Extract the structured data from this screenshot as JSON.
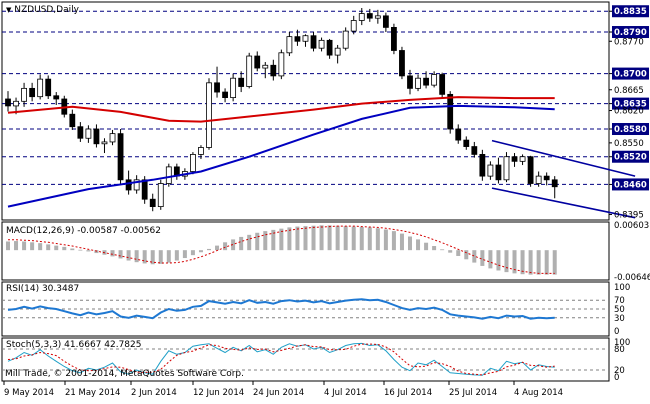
{
  "chart_data": {
    "type": "candlestick",
    "symbol_label": "NZDUSD,Daily",
    "copyright": "Mill Trade, © 2001-2014, MetaQuotes Software Corp.",
    "price_axis": {
      "ylim": [
        0.8383,
        0.8855
      ],
      "levels": [
        {
          "value": 0.8835,
          "label": "0.8835",
          "highlight": true
        },
        {
          "value": 0.879,
          "label": "0.8790",
          "highlight": true
        },
        {
          "value": 0.877,
          "label": "0.8770",
          "highlight": false
        },
        {
          "value": 0.87,
          "label": "0.8700",
          "highlight": true
        },
        {
          "value": 0.8665,
          "label": "0.8665",
          "highlight": false
        },
        {
          "value": 0.8635,
          "label": "0.8635",
          "highlight": true
        },
        {
          "value": 0.862,
          "label": "0.8620",
          "highlight": false
        },
        {
          "value": 0.858,
          "label": "0.8580",
          "highlight": true
        },
        {
          "value": 0.855,
          "label": "0.8550",
          "highlight": false
        },
        {
          "value": 0.852,
          "label": "0.8520",
          "highlight": true
        },
        {
          "value": 0.846,
          "label": "0.8460",
          "highlight": true
        },
        {
          "value": 0.8395,
          "label": "0.8395",
          "highlight": false
        }
      ],
      "dashed_levels": [
        0.8835,
        0.879,
        0.87,
        0.8635,
        0.858,
        0.852,
        0.846
      ]
    },
    "x_labels": [
      "9 May 2014",
      "21 May 2014",
      "2 Jun 2014",
      "12 Jun 2014",
      "24 Jun 2014",
      "4 Jul 2014",
      "16 Jul 2014",
      "25 Jul 2014",
      "4 Aug 2014"
    ],
    "candles": [
      [
        0.8645,
        0.8662,
        0.8618,
        0.863
      ],
      [
        0.863,
        0.8648,
        0.8612,
        0.864
      ],
      [
        0.864,
        0.868,
        0.8628,
        0.8668
      ],
      [
        0.8668,
        0.868,
        0.864,
        0.865
      ],
      [
        0.865,
        0.8698,
        0.8644,
        0.8688
      ],
      [
        0.8688,
        0.8696,
        0.8645,
        0.8652
      ],
      [
        0.8652,
        0.866,
        0.8632,
        0.8645
      ],
      [
        0.8645,
        0.8652,
        0.8605,
        0.8612
      ],
      [
        0.8612,
        0.8622,
        0.8578,
        0.8585
      ],
      [
        0.8585,
        0.8595,
        0.8552,
        0.856
      ],
      [
        0.856,
        0.8588,
        0.855,
        0.858
      ],
      [
        0.858,
        0.859,
        0.854,
        0.8548
      ],
      [
        0.8548,
        0.856,
        0.8528,
        0.8552
      ],
      [
        0.8552,
        0.8578,
        0.8545,
        0.857
      ],
      [
        0.857,
        0.858,
        0.8462,
        0.847
      ],
      [
        0.847,
        0.849,
        0.8438,
        0.8448
      ],
      [
        0.8448,
        0.848,
        0.844,
        0.847
      ],
      [
        0.847,
        0.8478,
        0.8418,
        0.8428
      ],
      [
        0.8428,
        0.844,
        0.8402,
        0.8412
      ],
      [
        0.8412,
        0.847,
        0.8405,
        0.8462
      ],
      [
        0.8462,
        0.8505,
        0.8455,
        0.8498
      ],
      [
        0.8498,
        0.8505,
        0.847,
        0.8478
      ],
      [
        0.8478,
        0.8495,
        0.847,
        0.8488
      ],
      [
        0.8488,
        0.853,
        0.8482,
        0.8525
      ],
      [
        0.8525,
        0.8545,
        0.8515,
        0.854
      ],
      [
        0.854,
        0.869,
        0.8535,
        0.868
      ],
      [
        0.868,
        0.8715,
        0.8648,
        0.866
      ],
      [
        0.866,
        0.8668,
        0.8638,
        0.8648
      ],
      [
        0.8648,
        0.87,
        0.864,
        0.869
      ],
      [
        0.869,
        0.8705,
        0.866,
        0.8672
      ],
      [
        0.8672,
        0.8745,
        0.8668,
        0.8738
      ],
      [
        0.8738,
        0.8748,
        0.8705,
        0.8712
      ],
      [
        0.8712,
        0.8725,
        0.869,
        0.8718
      ],
      [
        0.8718,
        0.873,
        0.8685,
        0.8695
      ],
      [
        0.8695,
        0.8752,
        0.8688,
        0.8745
      ],
      [
        0.8745,
        0.879,
        0.8738,
        0.878
      ],
      [
        0.878,
        0.8795,
        0.876,
        0.877
      ],
      [
        0.877,
        0.8785,
        0.8758,
        0.8782
      ],
      [
        0.8782,
        0.879,
        0.8748,
        0.8755
      ],
      [
        0.8755,
        0.8778,
        0.8748,
        0.8772
      ],
      [
        0.8772,
        0.8775,
        0.8732,
        0.874
      ],
      [
        0.874,
        0.8762,
        0.8722,
        0.8755
      ],
      [
        0.8755,
        0.88,
        0.875,
        0.8792
      ],
      [
        0.8792,
        0.8825,
        0.8785,
        0.8815
      ],
      [
        0.8815,
        0.8842,
        0.8805,
        0.883
      ],
      [
        0.883,
        0.884,
        0.8812,
        0.882
      ],
      [
        0.882,
        0.8838,
        0.8808,
        0.8825
      ],
      [
        0.8825,
        0.8832,
        0.879,
        0.88
      ],
      [
        0.88,
        0.8808,
        0.8742,
        0.875
      ],
      [
        0.875,
        0.8758,
        0.8688,
        0.8695
      ],
      [
        0.8695,
        0.8708,
        0.8655,
        0.8668
      ],
      [
        0.8668,
        0.8698,
        0.8662,
        0.869
      ],
      [
        0.869,
        0.8705,
        0.8668,
        0.8675
      ],
      [
        0.8675,
        0.8705,
        0.867,
        0.8698
      ],
      [
        0.8698,
        0.8702,
        0.8648,
        0.8655
      ],
      [
        0.8655,
        0.8662,
        0.857,
        0.858
      ],
      [
        0.858,
        0.859,
        0.8548,
        0.8556
      ],
      [
        0.8556,
        0.8564,
        0.8535,
        0.8542
      ],
      [
        0.8542,
        0.8552,
        0.8518,
        0.8525
      ],
      [
        0.8525,
        0.8535,
        0.8468,
        0.8478
      ],
      [
        0.8478,
        0.851,
        0.847,
        0.8502
      ],
      [
        0.8502,
        0.8518,
        0.8462,
        0.847
      ],
      [
        0.847,
        0.853,
        0.8465,
        0.852
      ],
      [
        0.852,
        0.8528,
        0.8498,
        0.851
      ],
      [
        0.851,
        0.8525,
        0.8502,
        0.852
      ],
      [
        0.852,
        0.8522,
        0.8455,
        0.8462
      ],
      [
        0.8462,
        0.8488,
        0.8455,
        0.8478
      ],
      [
        0.8478,
        0.8486,
        0.8458,
        0.847
      ],
      [
        0.847,
        0.8478,
        0.843,
        0.8455
      ]
    ],
    "ma_red": [
      [
        0,
        0.8615
      ],
      [
        8,
        0.8628
      ],
      [
        14,
        0.8617
      ],
      [
        20,
        0.8598
      ],
      [
        24,
        0.8596
      ],
      [
        30,
        0.8607
      ],
      [
        38,
        0.8622
      ],
      [
        44,
        0.8635
      ],
      [
        50,
        0.8643
      ],
      [
        56,
        0.8649
      ],
      [
        63,
        0.8647
      ],
      [
        68,
        0.8647
      ]
    ],
    "ma_blue": [
      [
        0,
        0.8412
      ],
      [
        10,
        0.845
      ],
      [
        18,
        0.847
      ],
      [
        24,
        0.8488
      ],
      [
        30,
        0.852
      ],
      [
        38,
        0.8568
      ],
      [
        44,
        0.8602
      ],
      [
        50,
        0.8626
      ],
      [
        56,
        0.863
      ],
      [
        63,
        0.8627
      ],
      [
        68,
        0.8623
      ]
    ],
    "channel_upper": [
      [
        60.2,
        0.8555
      ],
      [
        78,
        0.8478
      ]
    ],
    "channel_lower": [
      [
        60.2,
        0.8452
      ],
      [
        78,
        0.8388
      ]
    ],
    "macd": {
      "label": "MACD(12,26,9) -0.00587 -0.00562",
      "ylim": [
        -0.0072,
        0.0068
      ],
      "ticks": [
        {
          "value": 0.00603,
          "label": "0.00603"
        },
        {
          "value": -0.00646,
          "label": "-0.00646"
        }
      ],
      "histogram": [
        0.0021,
        0.0022,
        0.0021,
        0.0019,
        0.0017,
        0.0014,
        0.0011,
        0.0008,
        0.0004,
        0.0001,
        -0.0003,
        -0.0007,
        -0.0011,
        -0.0015,
        -0.002,
        -0.0025,
        -0.0029,
        -0.0032,
        -0.0034,
        -0.0033,
        -0.003,
        -0.0025,
        -0.0019,
        -0.0012,
        -0.0005,
        0.0003,
        0.0011,
        0.0019,
        0.0026,
        0.0032,
        0.0037,
        0.0042,
        0.0046,
        0.0049,
        0.0052,
        0.0055,
        0.0057,
        0.0058,
        0.0059,
        0.006,
        0.006,
        0.0059,
        0.0058,
        0.0057,
        0.0056,
        0.0055,
        0.0053,
        0.005,
        0.0046,
        0.004,
        0.0033,
        0.0026,
        0.0018,
        0.001,
        0.0002,
        -0.0006,
        -0.0014,
        -0.0022,
        -0.003,
        -0.0038,
        -0.0044,
        -0.0049,
        -0.0053,
        -0.0056,
        -0.0058,
        -0.0059,
        -0.0059,
        -0.0059,
        -0.0059
      ],
      "signal": [
        0.0025,
        0.0025,
        0.0024,
        0.0023,
        0.0021,
        0.0019,
        0.0016,
        0.0013,
        0.001,
        0.0006,
        0.0002,
        -0.0002,
        -0.0006,
        -0.001,
        -0.0014,
        -0.0018,
        -0.0022,
        -0.0026,
        -0.0029,
        -0.0031,
        -0.0031,
        -0.003,
        -0.0027,
        -0.0022,
        -0.0016,
        -0.0009,
        -0.0001,
        0.0007,
        0.0014,
        0.0021,
        0.0027,
        0.0032,
        0.0037,
        0.0041,
        0.0045,
        0.0048,
        0.0051,
        0.0053,
        0.0055,
        0.0056,
        0.0057,
        0.0058,
        0.0058,
        0.0058,
        0.0057,
        0.0056,
        0.0055,
        0.0053,
        0.005,
        0.0047,
        0.0043,
        0.0038,
        0.0032,
        0.0025,
        0.0018,
        0.001,
        0.0002,
        -0.0006,
        -0.0014,
        -0.0022,
        -0.0029,
        -0.0036,
        -0.0042,
        -0.0047,
        -0.0051,
        -0.0054,
        -0.0056,
        -0.0056,
        -0.0056
      ]
    },
    "rsi": {
      "label": "RSI(14) 30.3487",
      "ylim": [
        0,
        100
      ],
      "ticks": [
        {
          "value": 100,
          "label": "100"
        },
        {
          "value": 70,
          "label": "70"
        },
        {
          "value": 50,
          "label": "50"
        },
        {
          "value": 30,
          "label": "30"
        },
        {
          "value": 0,
          "label": "0"
        }
      ],
      "dashed_levels": [
        70,
        50,
        30
      ],
      "values": [
        48,
        50,
        55,
        51,
        56,
        52,
        50,
        45,
        40,
        36,
        42,
        38,
        41,
        45,
        33,
        30,
        35,
        32,
        29,
        42,
        50,
        46,
        48,
        55,
        57,
        68,
        65,
        62,
        66,
        63,
        70,
        64,
        66,
        62,
        68,
        70,
        67,
        69,
        65,
        68,
        63,
        66,
        69,
        71,
        72,
        70,
        71,
        66,
        59,
        52,
        48,
        52,
        50,
        53,
        48,
        38,
        35,
        33,
        31,
        28,
        32,
        29,
        35,
        33,
        34,
        28,
        30,
        29,
        30
      ]
    },
    "stoch": {
      "label": "Stoch(5,3,3) 41.6667 42.7825",
      "ylim": [
        0,
        100
      ],
      "ticks": [
        {
          "value": 100,
          "label": "100"
        },
        {
          "value": 80,
          "label": "80"
        },
        {
          "value": 20,
          "label": "20"
        },
        {
          "value": 0,
          "label": "0"
        }
      ],
      "dashed_levels": [
        80,
        20
      ],
      "main": [
        45,
        55,
        70,
        62,
        78,
        60,
        45,
        30,
        18,
        12,
        25,
        20,
        28,
        40,
        15,
        8,
        20,
        12,
        8,
        45,
        75,
        65,
        70,
        88,
        92,
        95,
        82,
        70,
        85,
        75,
        90,
        72,
        78,
        65,
        85,
        95,
        88,
        92,
        80,
        85,
        70,
        78,
        90,
        95,
        96,
        90,
        92,
        75,
        50,
        28,
        18,
        40,
        35,
        48,
        30,
        12,
        10,
        8,
        6,
        5,
        25,
        18,
        45,
        38,
        42,
        20,
        35,
        30,
        28
      ],
      "signal": [
        50,
        52,
        60,
        63,
        70,
        67,
        61,
        45,
        31,
        20,
        18,
        19,
        24,
        29,
        28,
        21,
        14,
        13,
        13,
        22,
        43,
        62,
        70,
        74,
        83,
        92,
        90,
        82,
        79,
        77,
        83,
        79,
        80,
        72,
        76,
        82,
        89,
        92,
        87,
        86,
        78,
        78,
        79,
        88,
        94,
        94,
        93,
        86,
        72,
        51,
        32,
        29,
        31,
        41,
        38,
        30,
        17,
        10,
        8,
        6,
        12,
        16,
        29,
        34,
        42,
        33,
        32,
        28,
        31
      ]
    }
  }
}
